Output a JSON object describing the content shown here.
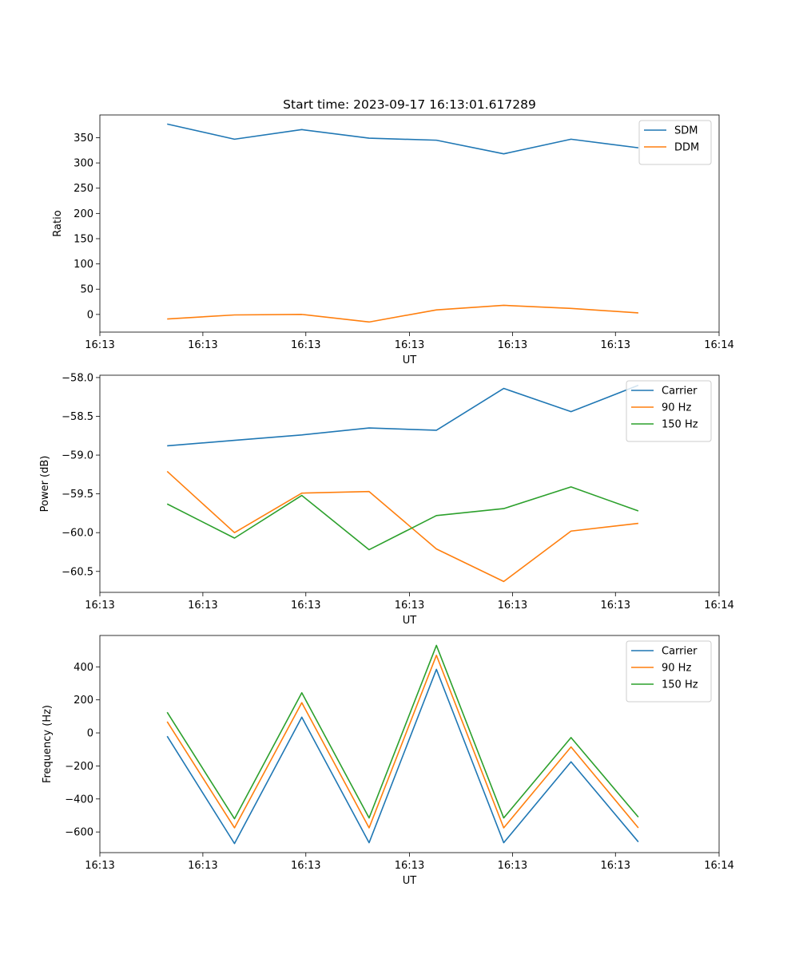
{
  "figure_title": "Start time: 2023-09-17 16:13:01.617289",
  "colors": {
    "blue": "#1f77b4",
    "orange": "#ff7f0e",
    "green": "#2ca02c"
  },
  "chart_data": [
    {
      "type": "line",
      "title": "Start time: 2023-09-17 16:13:01.617289",
      "xlabel": "UT",
      "ylabel": "Ratio",
      "x": [
        1,
        2,
        3,
        4,
        5,
        6,
        7,
        8
      ],
      "xlim": [
        0,
        9.2
      ],
      "xticks": [
        0,
        1.53,
        3.06,
        4.6,
        6.13,
        7.66,
        9.2
      ],
      "xtick_labels": [
        "16:13",
        "16:13",
        "16:13",
        "16:13",
        "16:13",
        "16:13",
        "16:14"
      ],
      "ylim": [
        -35,
        395
      ],
      "yticks": [
        0,
        50,
        100,
        150,
        200,
        250,
        300,
        350
      ],
      "ytick_labels": [
        "0",
        "50",
        "100",
        "150",
        "200",
        "250",
        "300",
        "350"
      ],
      "legend_position": "top-right",
      "series": [
        {
          "name": "SDM",
          "color": "#1f77b4",
          "values": [
            377,
            347,
            366,
            349,
            345,
            318,
            347,
            330
          ]
        },
        {
          "name": "DDM",
          "color": "#ff7f0e",
          "values": [
            -9,
            -1,
            0,
            -15,
            9,
            18,
            12,
            3
          ]
        }
      ]
    },
    {
      "type": "line",
      "title": "",
      "xlabel": "UT",
      "ylabel": "Power (dB)",
      "x": [
        1,
        2,
        3,
        4,
        5,
        6,
        7,
        8
      ],
      "xlim": [
        0,
        9.2
      ],
      "xticks": [
        0,
        1.53,
        3.06,
        4.6,
        6.13,
        7.66,
        9.2
      ],
      "xtick_labels": [
        "16:13",
        "16:13",
        "16:13",
        "16:13",
        "16:13",
        "16:13",
        "16:14"
      ],
      "ylim": [
        -60.77,
        -57.97
      ],
      "yticks": [
        -60.5,
        -60.0,
        -59.5,
        -59.0,
        -58.5,
        -58.0
      ],
      "ytick_labels": [
        "−60.5",
        "−60.0",
        "−59.5",
        "−59.0",
        "−58.5",
        "−58.0"
      ],
      "legend_position": "top-right",
      "series": [
        {
          "name": "Carrier",
          "color": "#1f77b4",
          "values": [
            -58.88,
            -58.81,
            -58.74,
            -58.65,
            -58.68,
            -58.14,
            -58.44,
            -58.1
          ]
        },
        {
          "name": "90 Hz",
          "color": "#ff7f0e",
          "values": [
            -59.21,
            -60.0,
            -59.49,
            -59.47,
            -60.21,
            -60.63,
            -59.98,
            -59.88
          ]
        },
        {
          "name": "150 Hz",
          "color": "#2ca02c",
          "values": [
            -59.63,
            -60.07,
            -59.52,
            -60.22,
            -59.78,
            -59.69,
            -59.41,
            -59.72
          ]
        }
      ]
    },
    {
      "type": "line",
      "title": "",
      "xlabel": "UT",
      "ylabel": "Frequency (Hz)",
      "x": [
        1,
        2,
        3,
        4,
        5,
        6,
        7,
        8
      ],
      "xlim": [
        0,
        9.2
      ],
      "xticks": [
        0,
        1.53,
        3.06,
        4.6,
        6.13,
        7.66,
        9.2
      ],
      "xtick_labels": [
        "16:13",
        "16:13",
        "16:13",
        "16:13",
        "16:13",
        "16:13",
        "16:14"
      ],
      "ylim": [
        -725,
        590
      ],
      "yticks": [
        -600,
        -400,
        -200,
        0,
        200,
        400
      ],
      "ytick_labels": [
        "−600",
        "−400",
        "−200",
        "0",
        "200",
        "400"
      ],
      "legend_position": "top-right",
      "series": [
        {
          "name": "Carrier",
          "color": "#1f77b4",
          "values": [
            -20,
            -670,
            95,
            -665,
            385,
            -665,
            -175,
            -660
          ]
        },
        {
          "name": "90 Hz",
          "color": "#ff7f0e",
          "values": [
            68,
            -575,
            183,
            -575,
            470,
            -575,
            -85,
            -575
          ]
        },
        {
          "name": "150 Hz",
          "color": "#2ca02c",
          "values": [
            125,
            -520,
            243,
            -515,
            530,
            -515,
            -28,
            -510
          ]
        }
      ]
    }
  ]
}
